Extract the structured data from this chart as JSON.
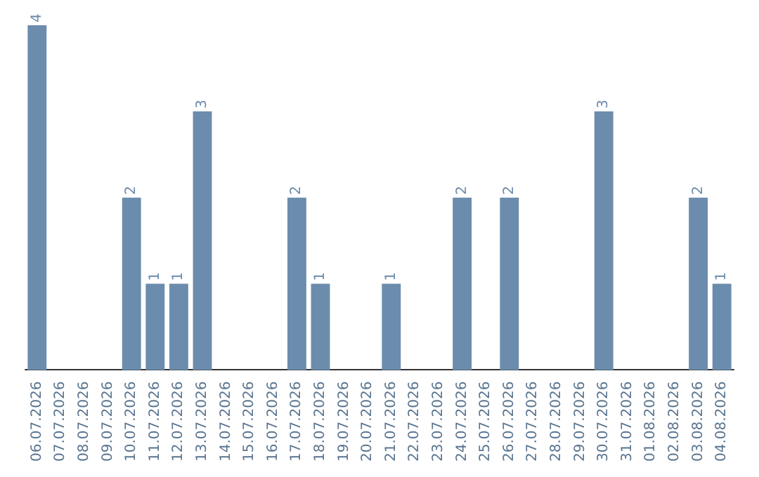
{
  "chart_data": {
    "type": "bar",
    "categories": [
      "06.07.2026",
      "07.07.2026",
      "08.07.2026",
      "09.07.2026",
      "10.07.2026",
      "11.07.2026",
      "12.07.2026",
      "13.07.2026",
      "14.07.2026",
      "15.07.2026",
      "16.07.2026",
      "17.07.2026",
      "18.07.2026",
      "19.07.2026",
      "20.07.2026",
      "21.07.2026",
      "22.07.2026",
      "23.07.2026",
      "24.07.2026",
      "25.07.2026",
      "26.07.2026",
      "27.07.2026",
      "28.07.2026",
      "29.07.2026",
      "30.07.2026",
      "31.07.2026",
      "01.08.2026",
      "02.08.2026",
      "03.08.2026",
      "04.08.2026"
    ],
    "values": [
      4,
      0,
      0,
      0,
      2,
      1,
      1,
      3,
      0,
      0,
      0,
      2,
      1,
      0,
      0,
      1,
      0,
      0,
      2,
      0,
      2,
      0,
      0,
      0,
      3,
      0,
      0,
      0,
      2,
      1
    ],
    "value_labels": [
      "4",
      null,
      null,
      null,
      "2",
      "1",
      "1",
      "3",
      null,
      null,
      null,
      "2",
      "1",
      null,
      null,
      "1",
      null,
      null,
      "2",
      null,
      "2",
      null,
      null,
      null,
      "3",
      null,
      null,
      null,
      "2",
      "1"
    ],
    "color": "#6b8cac",
    "tick_labels": "x",
    "grid": false
  }
}
